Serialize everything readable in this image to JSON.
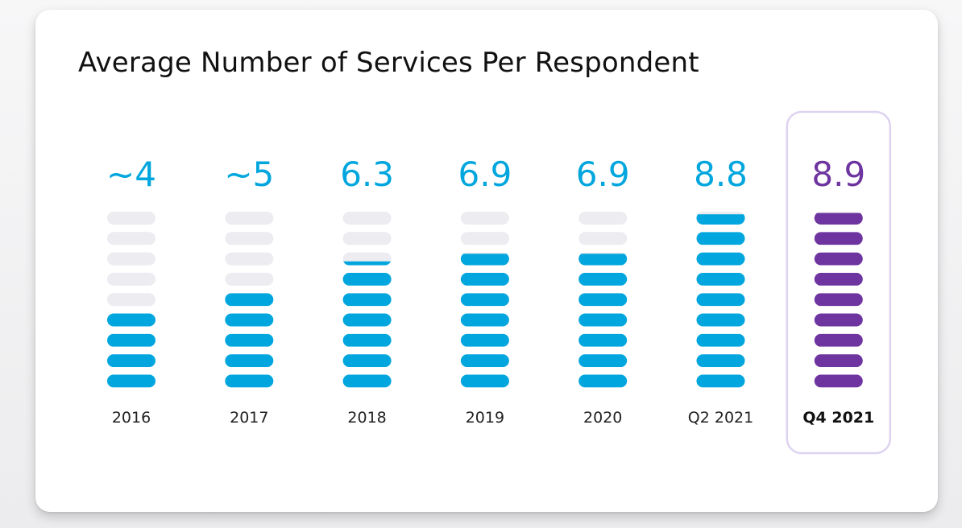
{
  "chart_data": {
    "type": "bar",
    "title": "Average Number of Services Per Respondent",
    "categories": [
      "2016",
      "2017",
      "2018",
      "2019",
      "2020",
      "Q2 2021",
      "Q4 2021"
    ],
    "labels": [
      "~4",
      "~5",
      "6.3",
      "6.9",
      "6.9",
      "8.8",
      "8.9"
    ],
    "values": [
      4,
      5,
      6.3,
      6.9,
      6.9,
      8.8,
      8.9
    ],
    "ylim": [
      0,
      9
    ],
    "highlight": "Q4 2021",
    "xlabel": "",
    "ylabel": "",
    "grid": false,
    "legend": "none"
  },
  "colors": {
    "primary": "#00a6dd",
    "highlight": "#6e35a0",
    "empty": "#ececf1",
    "highlight_border": "#ddd3f0"
  }
}
